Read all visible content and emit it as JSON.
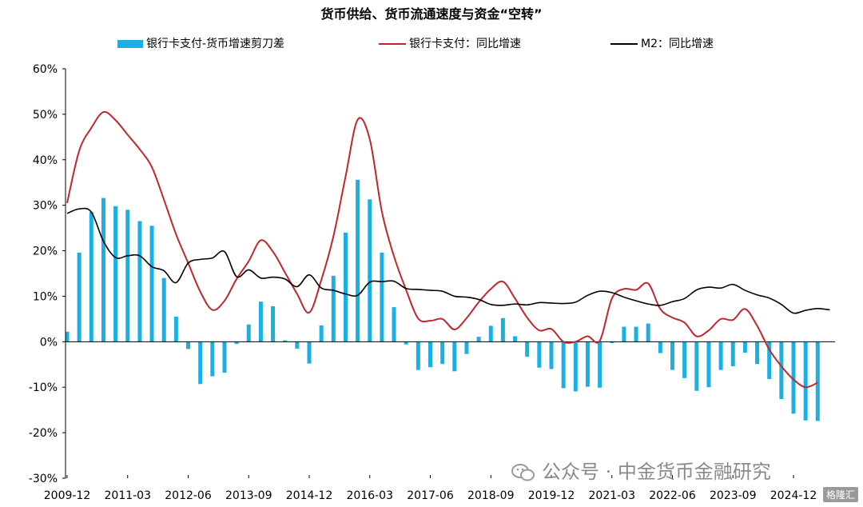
{
  "chart_data": {
    "type": "bar",
    "title": "货币供给、货币流通速度与资金“空转”",
    "ylim": [
      -30,
      60
    ],
    "yticks": [
      -30,
      -20,
      -10,
      0,
      10,
      20,
      30,
      40,
      50,
      60
    ],
    "ytick_labels": [
      "-30%",
      "-20%",
      "-10%",
      "0%",
      "10%",
      "20%",
      "30%",
      "40%",
      "50%",
      "60%"
    ],
    "xtick_labels": [
      "2009-12",
      "2011-03",
      "2012-06",
      "2013-09",
      "2014-12",
      "2016-03",
      "2017-06",
      "2018-09",
      "2019-12",
      "2021-03",
      "2022-06",
      "2023-09",
      "2024-12"
    ],
    "x_start": "2009-12",
    "x_step_months": 3,
    "grid": false,
    "legend_position": "top",
    "series": [
      {
        "name": "银行卡支付-货币增速剪刀差",
        "type": "bar",
        "color": "#1BB0E4",
        "values": [
          2.2,
          19.6,
          28.5,
          31.6,
          29.8,
          29.0,
          26.5,
          25.5,
          14.0,
          5.5,
          -1.6,
          -9.3,
          -7.6,
          -6.8,
          -0.5,
          3.8,
          8.8,
          7.8,
          0.3,
          -1.5,
          -4.8,
          3.6,
          14.5,
          24.0,
          35.6,
          31.3,
          19.6,
          7.6,
          -0.6,
          -6.2,
          -5.6,
          -4.9,
          -6.5,
          -2.7,
          1.1,
          3.5,
          5.2,
          1.2,
          -3.3,
          -5.7,
          -6.0,
          -10.2,
          -10.9,
          -9.9,
          -10.1,
          -0.3,
          3.3,
          3.3,
          4.0,
          -2.5,
          -6.2,
          -8.0,
          -10.8,
          -10.0,
          -6.2,
          -5.4,
          -2.4,
          -4.9,
          -8.2,
          -12.6,
          -15.8,
          -17.3,
          -17.4
        ],
        "values_end_x": 62
      },
      {
        "name": "银行卡支付：同比增速",
        "type": "line",
        "color": "#C0272D",
        "values": [
          30.5,
          42.0,
          47.0,
          50.5,
          48.7,
          45.5,
          42.3,
          38.4,
          31.2,
          23.6,
          17.3,
          11.0,
          7.0,
          9.0,
          13.8,
          17.7,
          22.3,
          19.8,
          15.2,
          10.5,
          6.4,
          13.6,
          23.2,
          36.3,
          48.8,
          44.5,
          28.6,
          18.8,
          11.4,
          5.1,
          4.6,
          5.0,
          2.7,
          5.2,
          8.7,
          11.6,
          13.2,
          9.5,
          5.3,
          2.5,
          2.8,
          0.0,
          0.0,
          1.2,
          0.2,
          9.5,
          11.6,
          11.4,
          12.8,
          7.2,
          5.3,
          4.2,
          1.2,
          2.5,
          5.0,
          4.8,
          7.2,
          3.5,
          -1.7,
          -5.4,
          -8.3,
          -10.0,
          -9.0
        ],
        "values_end_x": 62
      },
      {
        "name": "M2：同比增速",
        "type": "line",
        "color": "#000000",
        "values": [
          28.2,
          29.2,
          28.5,
          22.1,
          18.5,
          18.9,
          18.9,
          16.5,
          15.6,
          13.0,
          17.3,
          18.1,
          18.4,
          19.8,
          14.3,
          15.8,
          14.0,
          14.2,
          13.8,
          12.1,
          14.7,
          11.8,
          11.3,
          10.5,
          10.2,
          13.1,
          13.2,
          13.3,
          11.7,
          11.5,
          11.3,
          11.1,
          10.0,
          9.8,
          9.3,
          8.2,
          8.0,
          8.3,
          8.1,
          8.6,
          8.5,
          8.4,
          8.7,
          10.2,
          11.1,
          10.8,
          9.8,
          9.0,
          8.3,
          8.0,
          8.8,
          9.5,
          11.4,
          12.0,
          11.8,
          12.6,
          11.3,
          10.3,
          9.6,
          8.2,
          6.3,
          6.9,
          7.3,
          7.0
        ]
      }
    ]
  },
  "watermark": {
    "text": "公众号 · 中金货币金融研究",
    "brand": "格隆汇"
  }
}
